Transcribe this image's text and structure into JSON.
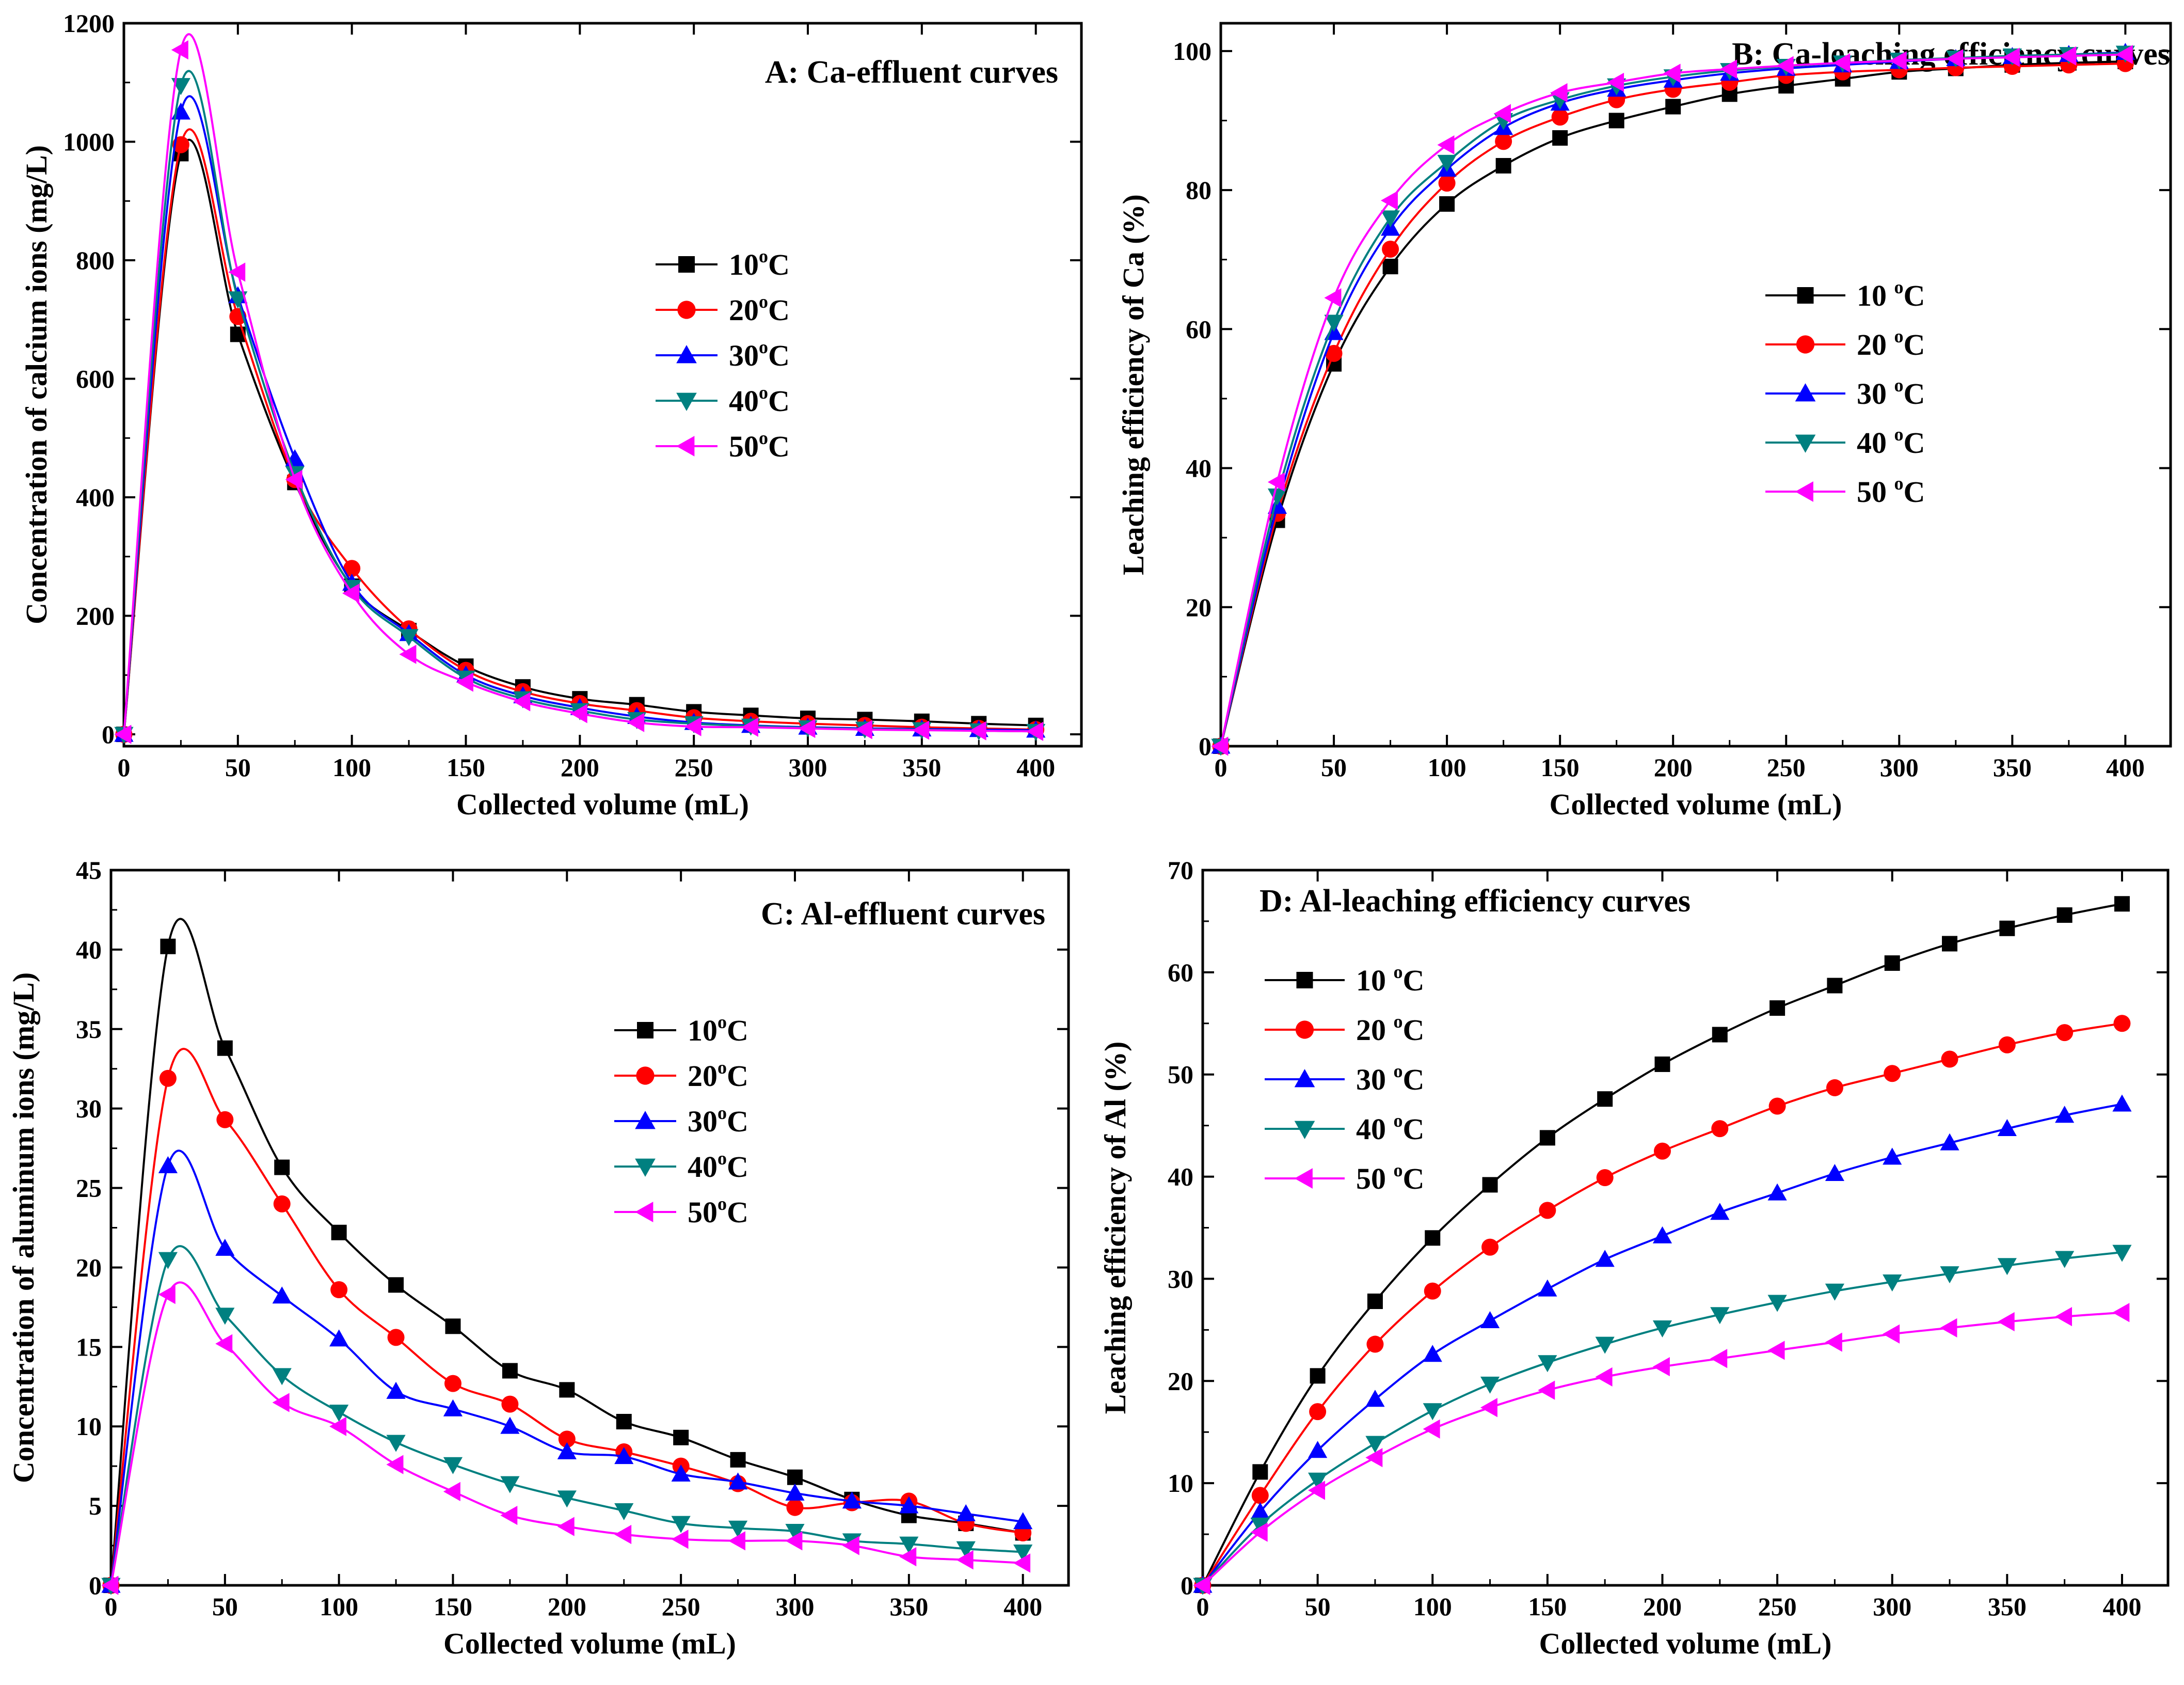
{
  "chart_data": [
    {
      "id": "A",
      "type": "line",
      "title": "A: Ca-effluent curves",
      "xlabel": "Collected volume (mL)",
      "ylabel": "Concentration of calcium ions (mg/L)",
      "xlim": [
        0,
        420
      ],
      "ylim": [
        -20,
        1200
      ],
      "xticks": [
        0,
        50,
        100,
        150,
        200,
        250,
        300,
        350,
        400
      ],
      "yticks": [
        0,
        200,
        400,
        600,
        800,
        1000,
        1200
      ],
      "legend_position": "right-middle",
      "x": [
        0,
        25,
        50,
        75,
        100,
        125,
        150,
        175,
        200,
        225,
        250,
        275,
        300,
        325,
        350,
        375,
        400
      ],
      "series": [
        {
          "name": "10",
          "color": "#000000",
          "marker": "square",
          "values": [
            0,
            980,
            675,
            425,
            250,
            175,
            115,
            80,
            60,
            50,
            38,
            32,
            27,
            25,
            22,
            18,
            15
          ]
        },
        {
          "name": "20",
          "color": "#ff0000",
          "marker": "circle",
          "values": [
            0,
            995,
            705,
            430,
            280,
            178,
            108,
            72,
            52,
            40,
            28,
            22,
            18,
            15,
            12,
            10,
            8
          ]
        },
        {
          "name": "30",
          "color": "#0000ff",
          "marker": "triangle-up",
          "values": [
            0,
            1050,
            740,
            465,
            255,
            170,
            100,
            65,
            45,
            30,
            20,
            15,
            12,
            10,
            9,
            8,
            7
          ]
        },
        {
          "name": "40",
          "color": "#008080",
          "marker": "triangle-down",
          "values": [
            0,
            1095,
            735,
            440,
            248,
            165,
            95,
            60,
            40,
            25,
            18,
            14,
            11,
            9,
            8,
            6,
            5
          ]
        },
        {
          "name": "50",
          "color": "#ff00ff",
          "marker": "triangle-left",
          "values": [
            0,
            1155,
            780,
            430,
            238,
            135,
            88,
            55,
            35,
            20,
            13,
            12,
            10,
            8,
            7,
            6,
            5
          ]
        }
      ],
      "legend_unit": "C",
      "legend_sup": "o"
    },
    {
      "id": "B",
      "type": "line",
      "title": "B: Ca-leaching efficiency curves",
      "xlabel": "Collected volume (mL)",
      "ylabel": "Leaching efficiency of Ca (%)",
      "xlim": [
        0,
        420
      ],
      "ylim": [
        0,
        104
      ],
      "xticks": [
        0,
        50,
        100,
        150,
        200,
        250,
        300,
        350,
        400
      ],
      "yticks": [
        0,
        20,
        40,
        60,
        80,
        100
      ],
      "legend_position": "right-middle",
      "x": [
        0,
        25,
        50,
        75,
        100,
        125,
        150,
        175,
        200,
        225,
        250,
        275,
        300,
        325,
        350,
        375,
        400
      ],
      "series": [
        {
          "name": "10 ",
          "color": "#000000",
          "marker": "square",
          "values": [
            0,
            32.5,
            55,
            69,
            78,
            83.5,
            87.5,
            90,
            92,
            93.8,
            95,
            96,
            97,
            97.5,
            98,
            98.3,
            98.5
          ]
        },
        {
          "name": "20 ",
          "color": "#ff0000",
          "marker": "circle",
          "values": [
            0,
            33.5,
            56.5,
            71.5,
            81,
            87,
            90.5,
            93,
            94.5,
            95.5,
            96.5,
            97,
            97.3,
            97.6,
            97.8,
            98,
            98.2
          ]
        },
        {
          "name": "30 ",
          "color": "#0000ff",
          "marker": "triangle-up",
          "values": [
            0,
            34.5,
            59.5,
            74.5,
            83,
            89,
            92.5,
            94.5,
            95.8,
            96.8,
            97.5,
            98,
            98.5,
            98.9,
            99.2,
            99.5,
            99.8
          ]
        },
        {
          "name": "40 ",
          "color": "#008080",
          "marker": "triangle-down",
          "values": [
            0,
            36,
            61,
            76,
            84,
            90,
            93,
            95,
            96.3,
            97.2,
            97.8,
            98.3,
            98.7,
            99,
            99.3,
            99.5,
            99.7
          ]
        },
        {
          "name": "50 ",
          "color": "#ff00ff",
          "marker": "triangle-left",
          "values": [
            0,
            38,
            64.5,
            78.5,
            86.5,
            91,
            94,
            95.5,
            96.8,
            97.4,
            97.9,
            98.3,
            98.6,
            98.9,
            99.1,
            99.3,
            99.5
          ]
        }
      ],
      "legend_unit": "C",
      "legend_sup": "o"
    },
    {
      "id": "C",
      "type": "line",
      "title": "C: Al-effluent curves",
      "xlabel": "Collected volume (mL)",
      "ylabel": "Concentration of aluminum ions (mg/L)",
      "xlim": [
        0,
        420
      ],
      "ylim": [
        0,
        45
      ],
      "xticks": [
        0,
        50,
        100,
        150,
        200,
        250,
        300,
        350,
        400
      ],
      "yticks": [
        0,
        5,
        10,
        15,
        20,
        25,
        30,
        35,
        40,
        45
      ],
      "legend_position": "right-upper",
      "x": [
        0,
        25,
        50,
        75,
        100,
        125,
        150,
        175,
        200,
        225,
        250,
        275,
        300,
        325,
        350,
        375,
        400
      ],
      "series": [
        {
          "name": "10",
          "color": "#000000",
          "marker": "square",
          "values": [
            0,
            40.2,
            33.8,
            26.3,
            22.2,
            18.9,
            16.3,
            13.5,
            12.3,
            10.3,
            9.3,
            7.9,
            6.8,
            5.4,
            4.4,
            3.9,
            3.3
          ]
        },
        {
          "name": "20",
          "color": "#ff0000",
          "marker": "circle",
          "values": [
            0,
            31.9,
            29.3,
            24.0,
            18.6,
            15.6,
            12.7,
            11.4,
            9.2,
            8.4,
            7.5,
            6.4,
            4.9,
            5.2,
            5.3,
            3.9,
            3.3
          ]
        },
        {
          "name": "30",
          "color": "#0000ff",
          "marker": "triangle-up",
          "values": [
            0,
            26.4,
            21.2,
            18.2,
            15.5,
            12.2,
            11.1,
            10.0,
            8.4,
            8.1,
            7.0,
            6.5,
            5.8,
            5.3,
            5.0,
            4.5,
            4.0
          ]
        },
        {
          "name": "40",
          "color": "#008080",
          "marker": "triangle-down",
          "values": [
            0,
            20.5,
            17.0,
            13.2,
            10.9,
            9.0,
            7.6,
            6.4,
            5.5,
            4.7,
            3.9,
            3.6,
            3.4,
            2.8,
            2.6,
            2.3,
            2.1
          ]
        },
        {
          "name": "50",
          "color": "#ff00ff",
          "marker": "triangle-left",
          "values": [
            0,
            18.3,
            15.2,
            11.5,
            10.0,
            7.6,
            5.9,
            4.4,
            3.7,
            3.2,
            2.9,
            2.8,
            2.8,
            2.5,
            1.8,
            1.6,
            1.4
          ]
        }
      ],
      "legend_unit": "C",
      "legend_sup": "o"
    },
    {
      "id": "D",
      "type": "line",
      "title": "D: Al-leaching efficiency curves",
      "xlabel": "Collected volume (mL)",
      "ylabel": "Leaching efficiency of Al (%)",
      "xlim": [
        0,
        420
      ],
      "ylim": [
        0,
        70
      ],
      "xticks": [
        0,
        50,
        100,
        150,
        200,
        250,
        300,
        350,
        400
      ],
      "yticks": [
        0,
        10,
        20,
        30,
        40,
        50,
        60,
        70
      ],
      "legend_position": "left-upper",
      "x": [
        0,
        25,
        50,
        75,
        100,
        125,
        150,
        175,
        200,
        225,
        250,
        275,
        300,
        325,
        350,
        375,
        400
      ],
      "series": [
        {
          "name": "10 ",
          "color": "#000000",
          "marker": "square",
          "values": [
            0,
            11.1,
            20.5,
            27.8,
            34.0,
            39.2,
            43.8,
            47.6,
            51.0,
            53.9,
            56.5,
            58.7,
            60.9,
            62.8,
            64.3,
            65.6,
            66.7
          ]
        },
        {
          "name": "20 ",
          "color": "#ff0000",
          "marker": "circle",
          "values": [
            0,
            8.8,
            17.0,
            23.6,
            28.8,
            33.1,
            36.7,
            39.9,
            42.5,
            44.7,
            46.9,
            48.7,
            50.1,
            51.5,
            52.9,
            54.1,
            55.0
          ]
        },
        {
          "name": "30 ",
          "color": "#0000ff",
          "marker": "triangle-up",
          "values": [
            0,
            7.2,
            13.2,
            18.2,
            22.6,
            25.9,
            29.0,
            31.9,
            34.2,
            36.5,
            38.4,
            40.3,
            41.9,
            43.3,
            44.7,
            46.0,
            47.1
          ]
        },
        {
          "name": "40 ",
          "color": "#008080",
          "marker": "triangle-down",
          "values": [
            0,
            5.9,
            10.3,
            13.9,
            17.1,
            19.7,
            21.8,
            23.6,
            25.2,
            26.5,
            27.7,
            28.8,
            29.7,
            30.5,
            31.3,
            32.0,
            32.6
          ]
        },
        {
          "name": "50 ",
          "color": "#ff00ff",
          "marker": "triangle-left",
          "values": [
            0,
            5.2,
            9.3,
            12.5,
            15.3,
            17.4,
            19.1,
            20.4,
            21.4,
            22.2,
            23.0,
            23.8,
            24.6,
            25.2,
            25.8,
            26.3,
            26.7
          ]
        }
      ],
      "legend_unit": "C",
      "legend_sup": "o"
    }
  ]
}
